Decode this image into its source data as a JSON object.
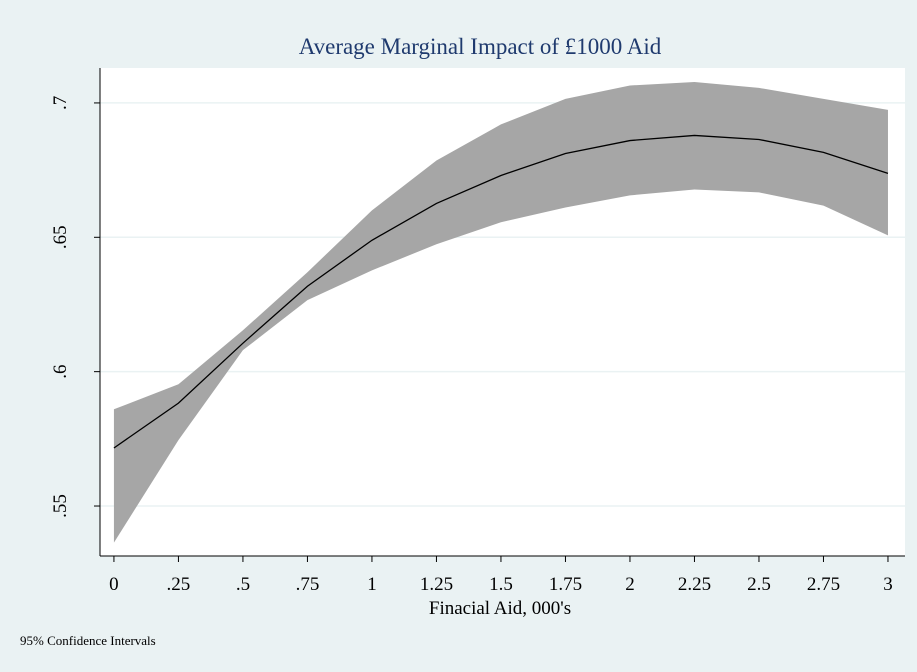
{
  "chart_data": {
    "type": "line",
    "title": "Average Marginal Impact of £1000 Aid",
    "x_label": "Finacial Aid, 000's",
    "note": "95% Confidence Intervals",
    "x": [
      0,
      0.25,
      0.5,
      0.75,
      1,
      1.25,
      1.5,
      1.75,
      2,
      2.25,
      2.5,
      2.75,
      3
    ],
    "values": [
      0.5716,
      0.5883,
      0.6106,
      0.6318,
      0.6489,
      0.6626,
      0.673,
      0.6812,
      0.686,
      0.6879,
      0.6864,
      0.6816,
      0.6738
    ],
    "ci_upper": [
      0.586,
      0.5953,
      0.6154,
      0.637,
      0.66,
      0.6786,
      0.692,
      0.7015,
      0.7065,
      0.7078,
      0.7056,
      0.7015,
      0.6974
    ],
    "ci_lower": [
      0.5364,
      0.5745,
      0.608,
      0.6266,
      0.6377,
      0.6474,
      0.6556,
      0.6611,
      0.6656,
      0.6678,
      0.6667,
      0.6618,
      0.6507
    ],
    "color": "#000000",
    "band_color": "#a6a6a6",
    "xlim": [
      -0.054,
      3.066
    ],
    "ylim": [
      0.5314,
      0.713
    ],
    "xticks": [
      0,
      {
        "value": 0.25,
        "label": ".25"
      },
      {
        "value": 0.5,
        "label": ".5"
      },
      {
        "value": 0.75,
        "label": ".75"
      },
      1,
      1.25,
      1.5,
      1.75,
      2,
      2.25,
      2.5,
      2.75,
      3
    ],
    "yticks": [
      {
        "value": 0.55,
        "label": ".55"
      },
      {
        "value": 0.6,
        "label": ".6"
      },
      {
        "value": 0.65,
        "label": ".65"
      },
      {
        "value": 0.7,
        "label": ".7"
      }
    ],
    "grid": true
  }
}
